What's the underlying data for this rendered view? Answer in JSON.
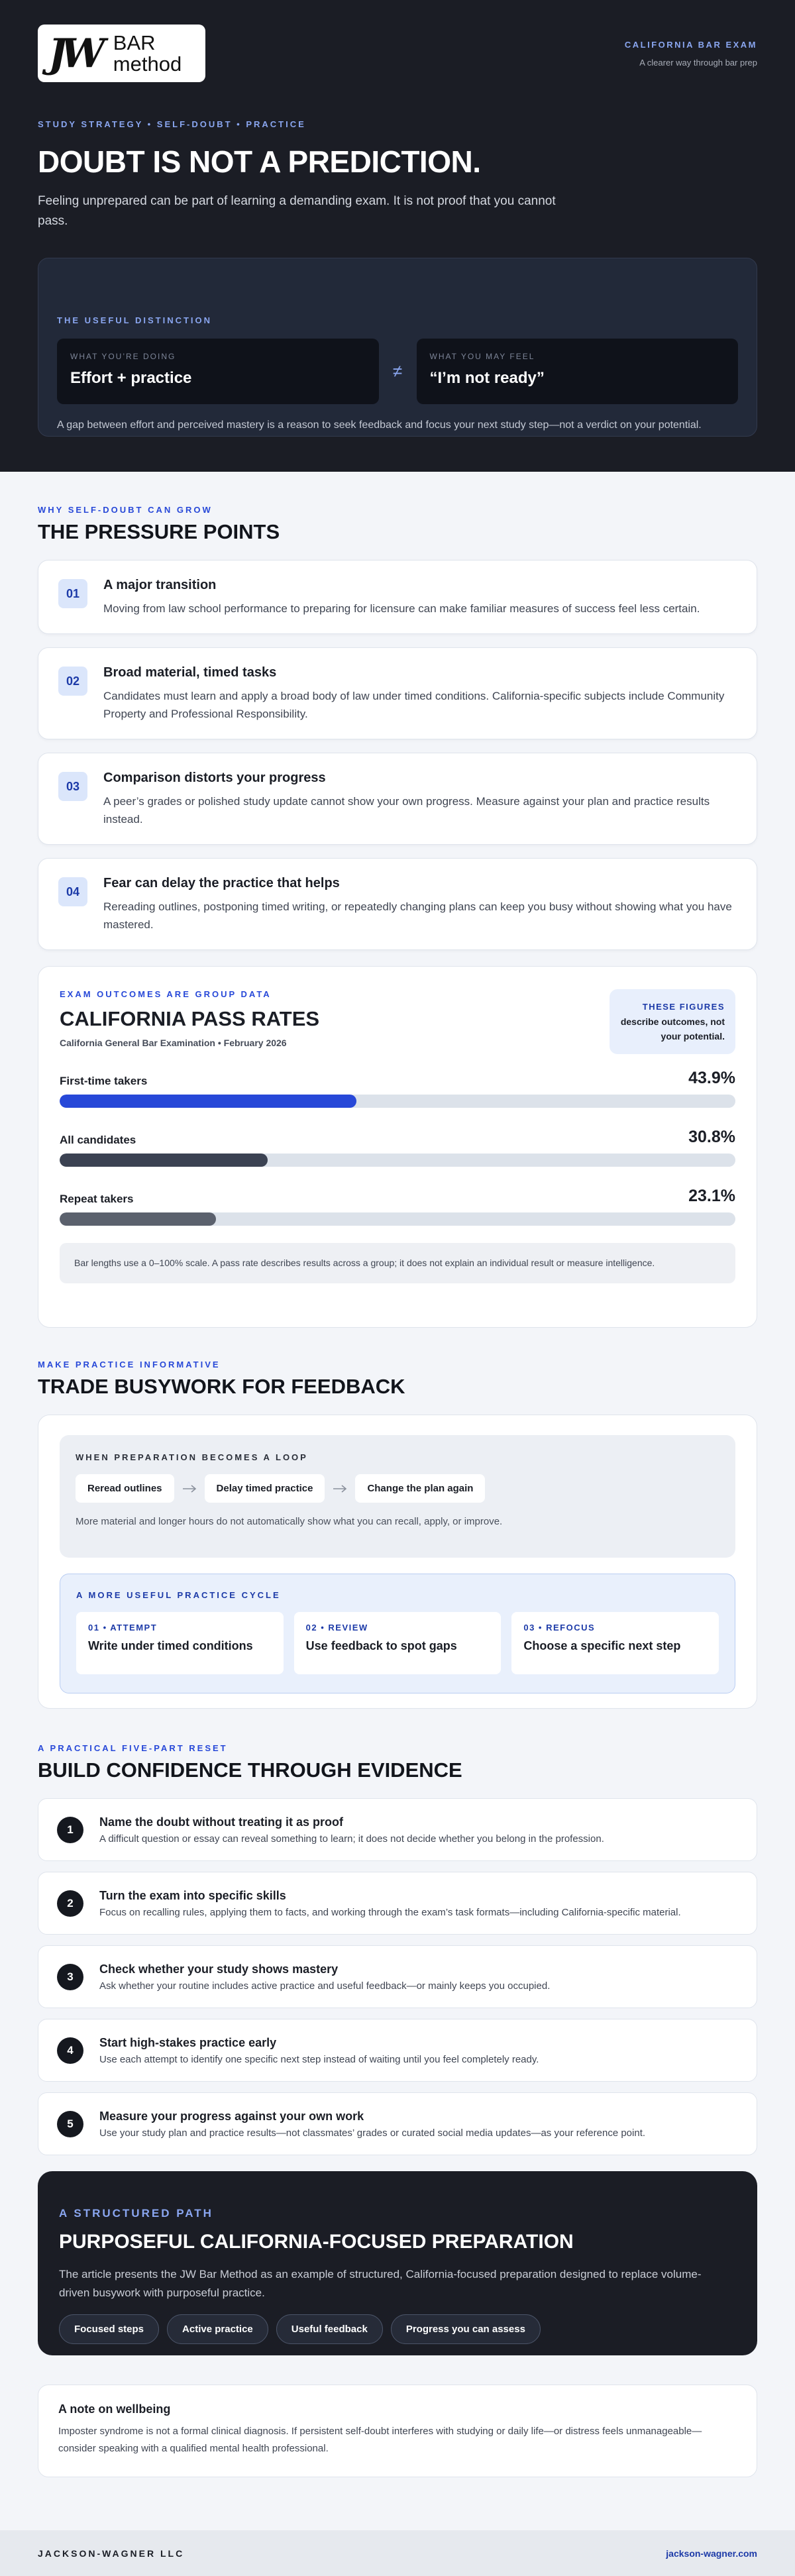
{
  "header": {
    "logo": {
      "mark": "JW",
      "line1": "BAR",
      "line2": "method"
    },
    "kicker": "CALIFORNIA BAR EXAM",
    "tagline": "A clearer way through bar prep"
  },
  "hero": {
    "eyebrow": "STUDY STRATEGY • SELF-DOUBT • PRACTICE",
    "title": "DOUBT IS NOT A PREDICTION.",
    "lead": "Feeling unprepared can be part of learning a demanding exam. It is not proof that you cannot pass.",
    "distinction": {
      "label": "THE USEFUL DISTINCTION",
      "left_label": "WHAT YOU’RE DOING",
      "left_value": "Effort + practice",
      "symbol": "≠",
      "right_label": "WHAT YOU MAY FEEL",
      "right_value": "“I’m not ready”",
      "note": "A gap between effort and perceived mastery is a reason to seek feedback and focus your next study step—not a verdict on your potential."
    }
  },
  "pressure": {
    "eyebrow": "WHY SELF-DOUBT CAN GROW",
    "title": "THE PRESSURE POINTS",
    "items": [
      {
        "number": "01",
        "title": "A major transition",
        "text": "Moving from law school performance to preparing for licensure can make familiar measures of success feel less certain."
      },
      {
        "number": "02",
        "title": "Broad material, timed tasks",
        "text": "Candidates must learn and apply a broad body of law under timed conditions. California-specific subjects include Community Property and Professional Responsibility."
      },
      {
        "number": "03",
        "title": "Comparison distorts your progress",
        "text": "A peer’s grades or polished study update cannot show your own progress. Measure against your plan and practice results instead."
      },
      {
        "number": "04",
        "title": "Fear can delay the practice that helps",
        "text": "Rereading outlines, postponing timed writing, or repeatedly changing plans can keep you busy without showing what you have mastered."
      }
    ]
  },
  "pass_rates": {
    "eyebrow": "EXAM OUTCOMES ARE GROUP DATA",
    "title": "CALIFORNIA PASS RATES",
    "subtitle": "California General Bar Examination • February 2026",
    "aside_label": "THESE FIGURES",
    "aside_text": "describe outcomes, not your potential.",
    "xlim": [
      0,
      100
    ],
    "items": [
      {
        "label": "First-time takers",
        "value": 43.9,
        "value_label": "43.9%",
        "color": "#2748d8"
      },
      {
        "label": "All candidates",
        "value": 30.8,
        "value_label": "30.8%",
        "color": "#3b4252"
      },
      {
        "label": "Repeat takers",
        "value": 23.1,
        "value_label": "23.1%",
        "color": "#5b616d"
      }
    ],
    "note": "Bar lengths use a 0–100% scale. A pass rate describes results across a group; it does not explain an individual result or measure intelligence."
  },
  "feedback": {
    "eyebrow": "MAKE PRACTICE INFORMATIVE",
    "title": "TRADE BUSYWORK FOR FEEDBACK",
    "loop_label": "WHEN PREPARATION BECOMES A LOOP",
    "loop_steps": [
      "Reread outlines",
      "Delay timed practice",
      "Change the plan again"
    ],
    "loop_note": "More material and longer hours do not automatically show what you can recall, apply, or improve.",
    "cycle_label": "A MORE USEFUL PRACTICE CYCLE",
    "cycle": [
      {
        "step": "01 • ATTEMPT",
        "text": "Write under timed conditions"
      },
      {
        "step": "02 • REVIEW",
        "text": "Use feedback to spot gaps"
      },
      {
        "step": "03 • REFOCUS",
        "text": "Choose a specific next step"
      }
    ]
  },
  "reset": {
    "eyebrow": "A PRACTICAL FIVE-PART RESET",
    "title": "BUILD CONFIDENCE THROUGH EVIDENCE",
    "items": [
      {
        "number": "1",
        "title": "Name the doubt without treating it as proof",
        "text": "A difficult question or essay can reveal something to learn; it does not decide whether you belong in the profession."
      },
      {
        "number": "2",
        "title": "Turn the exam into specific skills",
        "text": "Focus on recalling rules, applying them to facts, and working through the exam’s task formats—including California-specific material."
      },
      {
        "number": "3",
        "title": "Check whether your study shows mastery",
        "text": "Ask whether your routine includes active practice and useful feedback—or mainly keeps you occupied."
      },
      {
        "number": "4",
        "title": "Start high-stakes practice early",
        "text": "Use each attempt to identify one specific next step instead of waiting until you feel completely ready."
      },
      {
        "number": "5",
        "title": "Measure your progress against your own work",
        "text": "Use your study plan and practice results—not classmates’ grades or curated social media updates—as your reference point."
      }
    ]
  },
  "cta": {
    "eyebrow": "A STRUCTURED PATH",
    "title": "PURPOSEFUL CALIFORNIA-FOCUSED PREPARATION",
    "text": "The article presents the JW Bar Method as an example of structured, California-focused preparation designed to replace volume-driven busywork with purposeful practice.",
    "chips": [
      "Focused steps",
      "Active practice",
      "Useful feedback",
      "Progress you can assess"
    ]
  },
  "wellbeing": {
    "title": "A note on wellbeing",
    "text": "Imposter syndrome is not a formal clinical diagnosis. If persistent self-doubt interferes with studying or daily life—or distress feels unmanageable—consider speaking with a qualified mental health professional."
  },
  "footer": {
    "left": "JACKSON-WAGNER LLC",
    "right": "jackson-wagner.com"
  }
}
